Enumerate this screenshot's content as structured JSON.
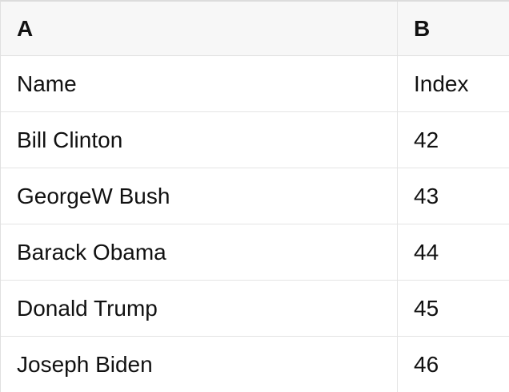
{
  "table": {
    "columns": [
      {
        "id": "A",
        "label": "A"
      },
      {
        "id": "B",
        "label": "B"
      }
    ],
    "rows": [
      {
        "a": "Name",
        "b": "Index"
      },
      {
        "a": "Bill Clinton",
        "b": "42"
      },
      {
        "a": "GeorgeW Bush",
        "b": "43"
      },
      {
        "a": "Barack Obama",
        "b": "44"
      },
      {
        "a": "Donald Trump",
        "b": "45"
      },
      {
        "a": "Joseph Biden",
        "b": "46"
      }
    ]
  },
  "colors": {
    "header_bg": "#f7f7f7",
    "row_bg": "#ffffff",
    "grid_line": "#e4e4e4",
    "top_border": "#dcdcdc",
    "text": "#111111"
  }
}
